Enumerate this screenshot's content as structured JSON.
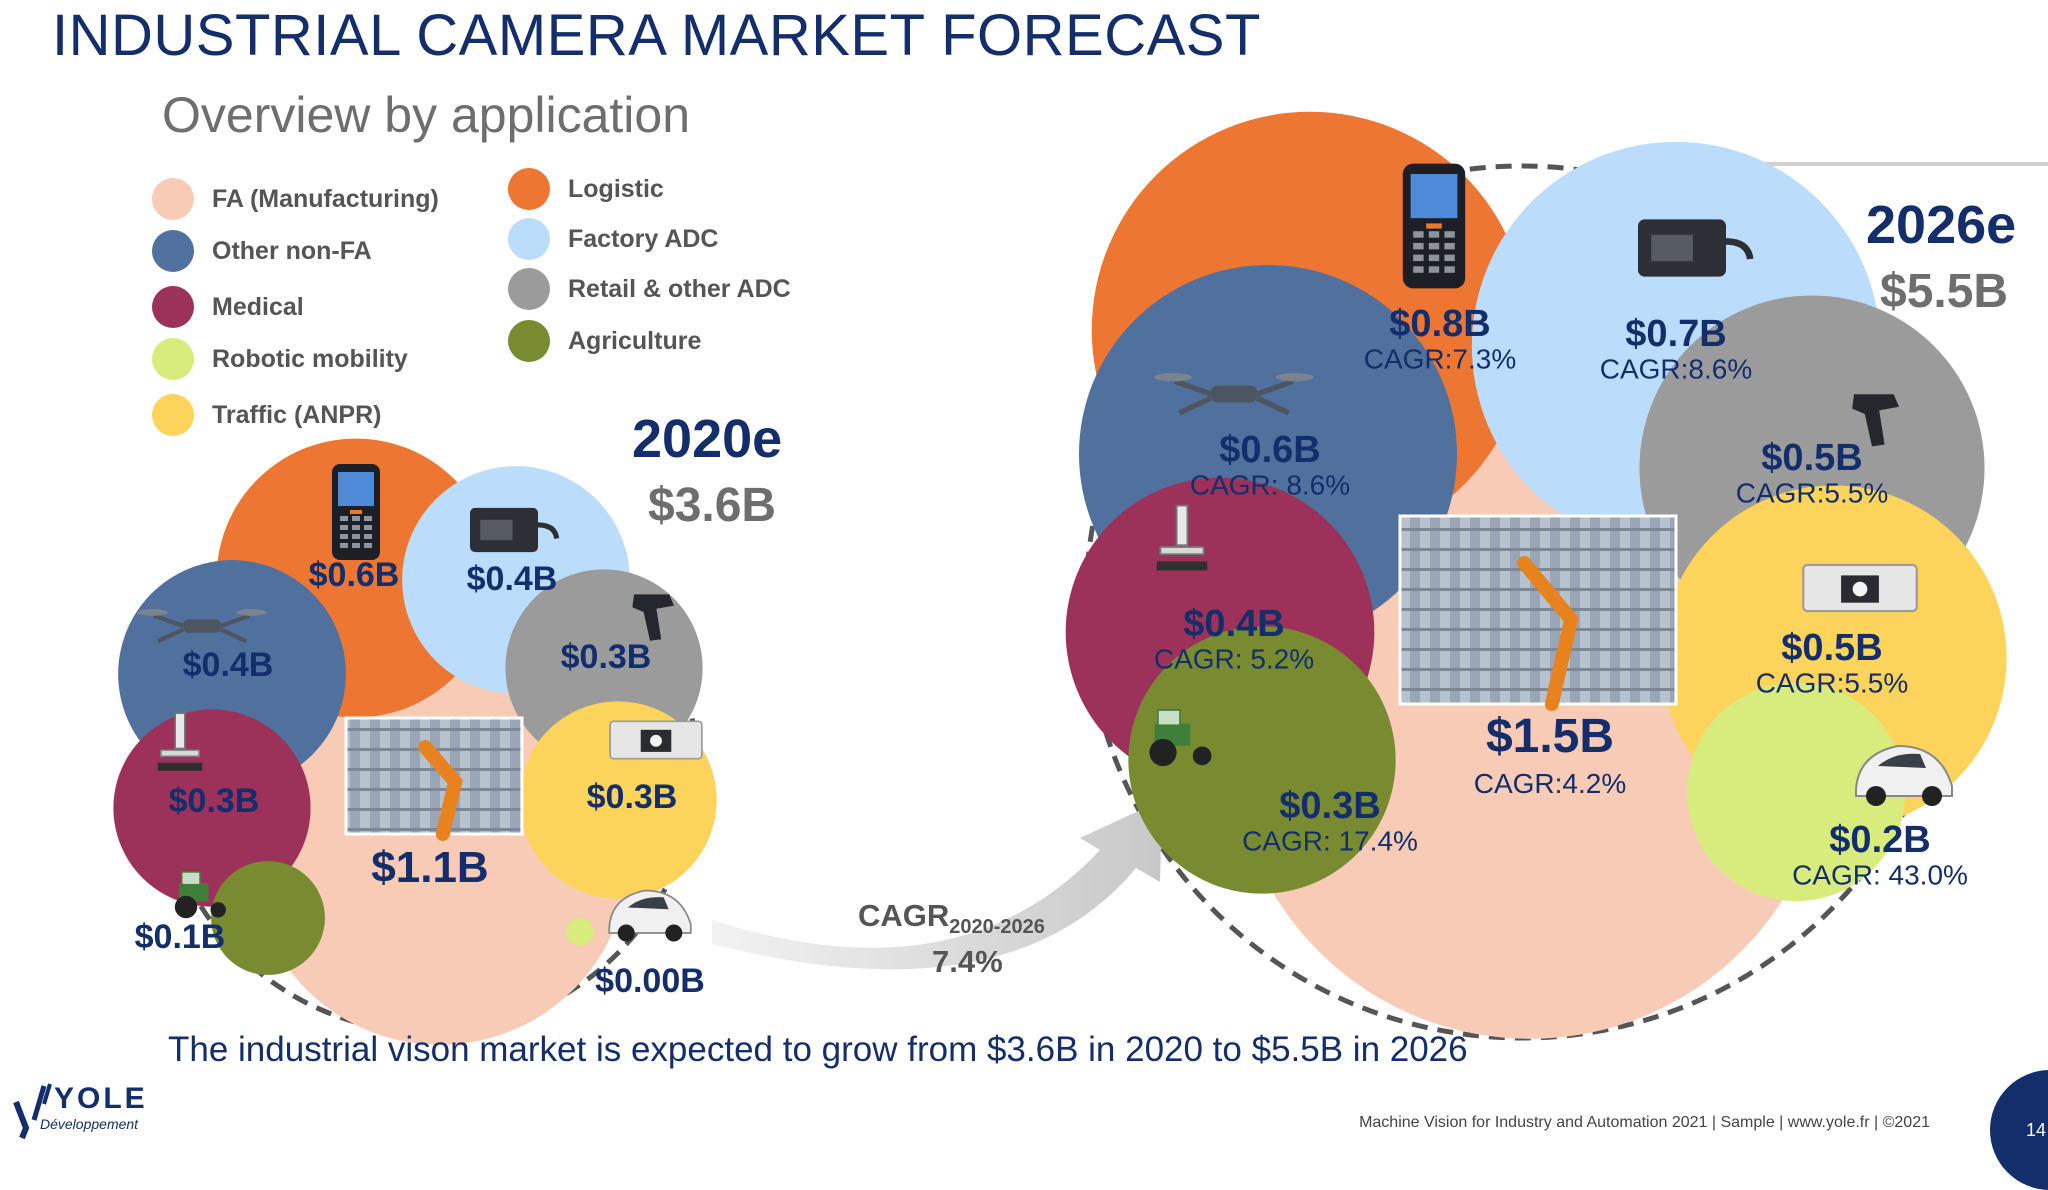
{
  "title": "INDUSTRIAL CAMERA MARKET FORECAST",
  "subtitle": "Overview by application",
  "legend": [
    {
      "label": "FA (Manufacturing)",
      "color": "#f7cbb5"
    },
    {
      "label": "Other non-FA",
      "color": "#50709e"
    },
    {
      "label": "Medical",
      "color": "#9c3259"
    },
    {
      "label": "Robotic mobility",
      "color": "#d8ec7e"
    },
    {
      "label": "Traffic (ANPR)",
      "color": "#fdd45b"
    },
    {
      "label": "Logistic",
      "color": "#ee7633"
    },
    {
      "label": "Factory ADC",
      "color": "#bcdcfc"
    },
    {
      "label": "Retail & other ADC",
      "color": "#9b9b9b"
    },
    {
      "label": "Agriculture",
      "color": "#788b31"
    }
  ],
  "chart_data": [
    {
      "type": "bubble",
      "year": "2020e",
      "total": "$3.6B",
      "segments": [
        {
          "name": "FA (Manufacturing)",
          "value": 1.1,
          "label": "$1.1B"
        },
        {
          "name": "Logistic",
          "value": 0.6,
          "label": "$0.6B"
        },
        {
          "name": "Factory ADC",
          "value": 0.4,
          "label": "$0.4B"
        },
        {
          "name": "Other non-FA",
          "value": 0.4,
          "label": "$0.4B"
        },
        {
          "name": "Retail & other ADC",
          "value": 0.3,
          "label": "$0.3B"
        },
        {
          "name": "Traffic (ANPR)",
          "value": 0.3,
          "label": "$0.3B"
        },
        {
          "name": "Medical",
          "value": 0.3,
          "label": "$0.3B"
        },
        {
          "name": "Agriculture",
          "value": 0.1,
          "label": "$0.1B"
        },
        {
          "name": "Robotic mobility",
          "value": 0.0,
          "label": "$0.00B"
        }
      ]
    },
    {
      "type": "bubble",
      "year": "2026e",
      "total": "$5.5B",
      "segments": [
        {
          "name": "FA (Manufacturing)",
          "value": 1.5,
          "label": "$1.5B",
          "cagr": "CAGR:4.2%"
        },
        {
          "name": "Logistic",
          "value": 0.8,
          "label": "$0.8B",
          "cagr": "CAGR:7.3%"
        },
        {
          "name": "Factory ADC",
          "value": 0.7,
          "label": "$0.7B",
          "cagr": "CAGR:8.6%"
        },
        {
          "name": "Other non-FA",
          "value": 0.6,
          "label": "$0.6B",
          "cagr": "CAGR: 8.6%"
        },
        {
          "name": "Retail & other ADC",
          "value": 0.5,
          "label": "$0.5B",
          "cagr": "CAGR:5.5%"
        },
        {
          "name": "Traffic (ANPR)",
          "value": 0.5,
          "label": "$0.5B",
          "cagr": "CAGR:5.5%"
        },
        {
          "name": "Medical",
          "value": 0.4,
          "label": "$0.4B",
          "cagr": "CAGR: 5.2%"
        },
        {
          "name": "Agriculture",
          "value": 0.3,
          "label": "$0.3B",
          "cagr": "CAGR: 17.4%"
        },
        {
          "name": "Robotic mobility",
          "value": 0.2,
          "label": "$0.2B",
          "cagr": "CAGR: 43.0%"
        }
      ]
    }
  ],
  "arrow": {
    "cagr_label": "CAGR",
    "cagr_period": "2020-2026",
    "cagr_value": "7.4%"
  },
  "footnote": "The industrial vison market is expected to grow from $3.6B in 2020 to $5.5B in 2026",
  "footer": "Machine Vision for Industry and Automation 2021 | Sample | www.yole.fr | ©2021",
  "logo": {
    "name": "YOLE",
    "sub": "Développement"
  },
  "page_number": "14",
  "colors": {
    "navy": "#132e6b",
    "grey_text": "#6e6e6e",
    "dashed": "#555555"
  }
}
